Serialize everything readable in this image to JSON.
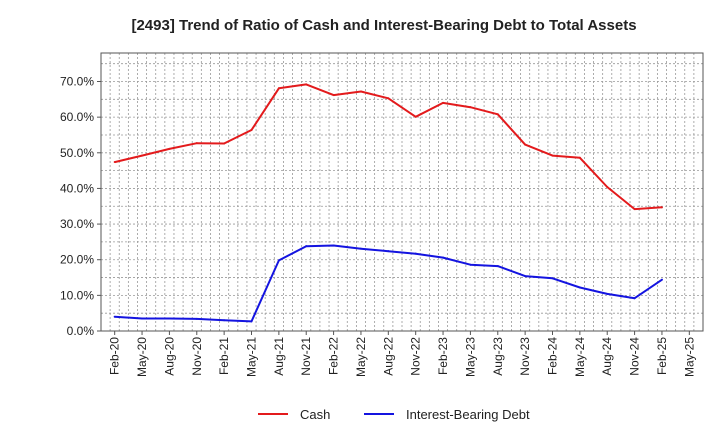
{
  "chart_data": {
    "type": "line",
    "title": "[2493]  Trend of Ratio of Cash and Interest-Bearing Debt to Total Assets",
    "xlabel": "",
    "ylabel": "",
    "x": [
      "Feb-20",
      "May-20",
      "Aug-20",
      "Nov-20",
      "Feb-21",
      "May-21",
      "Aug-21",
      "Nov-21",
      "Feb-22",
      "May-22",
      "Aug-22",
      "Nov-22",
      "Feb-23",
      "May-23",
      "Aug-23",
      "Nov-23",
      "Feb-24",
      "May-24",
      "Aug-24",
      "Nov-24",
      "Feb-25",
      "May-25"
    ],
    "yticks": [
      "0.0%",
      "10.0%",
      "20.0%",
      "30.0%",
      "40.0%",
      "50.0%",
      "60.0%",
      "70.0%"
    ],
    "ytick_values": [
      0,
      10,
      20,
      30,
      40,
      50,
      60,
      70
    ],
    "ylim": [
      0,
      78
    ],
    "grid": true,
    "legend_position": "bottom-center",
    "series": [
      {
        "name": "Cash",
        "color": "#e31a1c",
        "values": [
          47.4,
          49.2,
          51.1,
          52.7,
          52.6,
          56.4,
          68.1,
          69.2,
          66.2,
          67.2,
          65.3,
          60.1,
          64.0,
          62.8,
          60.8,
          52.3,
          49.2,
          48.6,
          40.4,
          34.2,
          34.7,
          null
        ]
      },
      {
        "name": "Interest-Bearing Debt",
        "color": "#1414e0",
        "values": [
          4.0,
          3.5,
          3.5,
          3.4,
          3.0,
          2.7,
          19.8,
          23.8,
          24.0,
          23.1,
          22.4,
          21.7,
          20.6,
          18.6,
          18.2,
          15.4,
          14.8,
          12.2,
          10.4,
          9.2,
          14.4,
          null
        ]
      }
    ]
  }
}
